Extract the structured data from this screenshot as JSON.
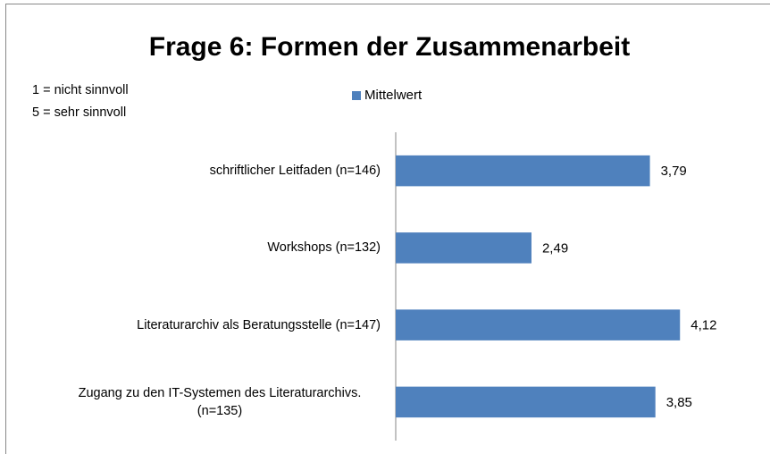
{
  "chart_data": {
    "type": "bar",
    "orientation": "horizontal",
    "title": "Frage 6: Formen der Zusammenarbeit",
    "annotations": [
      "1 = nicht sinnvoll",
      "5 = sehr sinnvoll"
    ],
    "categories": [
      "schriftlicher Leitfaden (n=146)",
      "Workshops (n=132)",
      "Literaturarchiv als Beratungsstelle (n=147)",
      "Zugang zu den IT-Systemen des Literaturarchivs. (n=135)"
    ],
    "series": [
      {
        "name": "Mittelwert",
        "color": "#4f81bd",
        "values": [
          3.79,
          2.49,
          4.12,
          3.85
        ],
        "value_labels": [
          "3,79",
          "2,49",
          "4,12",
          "3,85"
        ]
      }
    ],
    "xlim": [
      1,
      5
    ]
  }
}
